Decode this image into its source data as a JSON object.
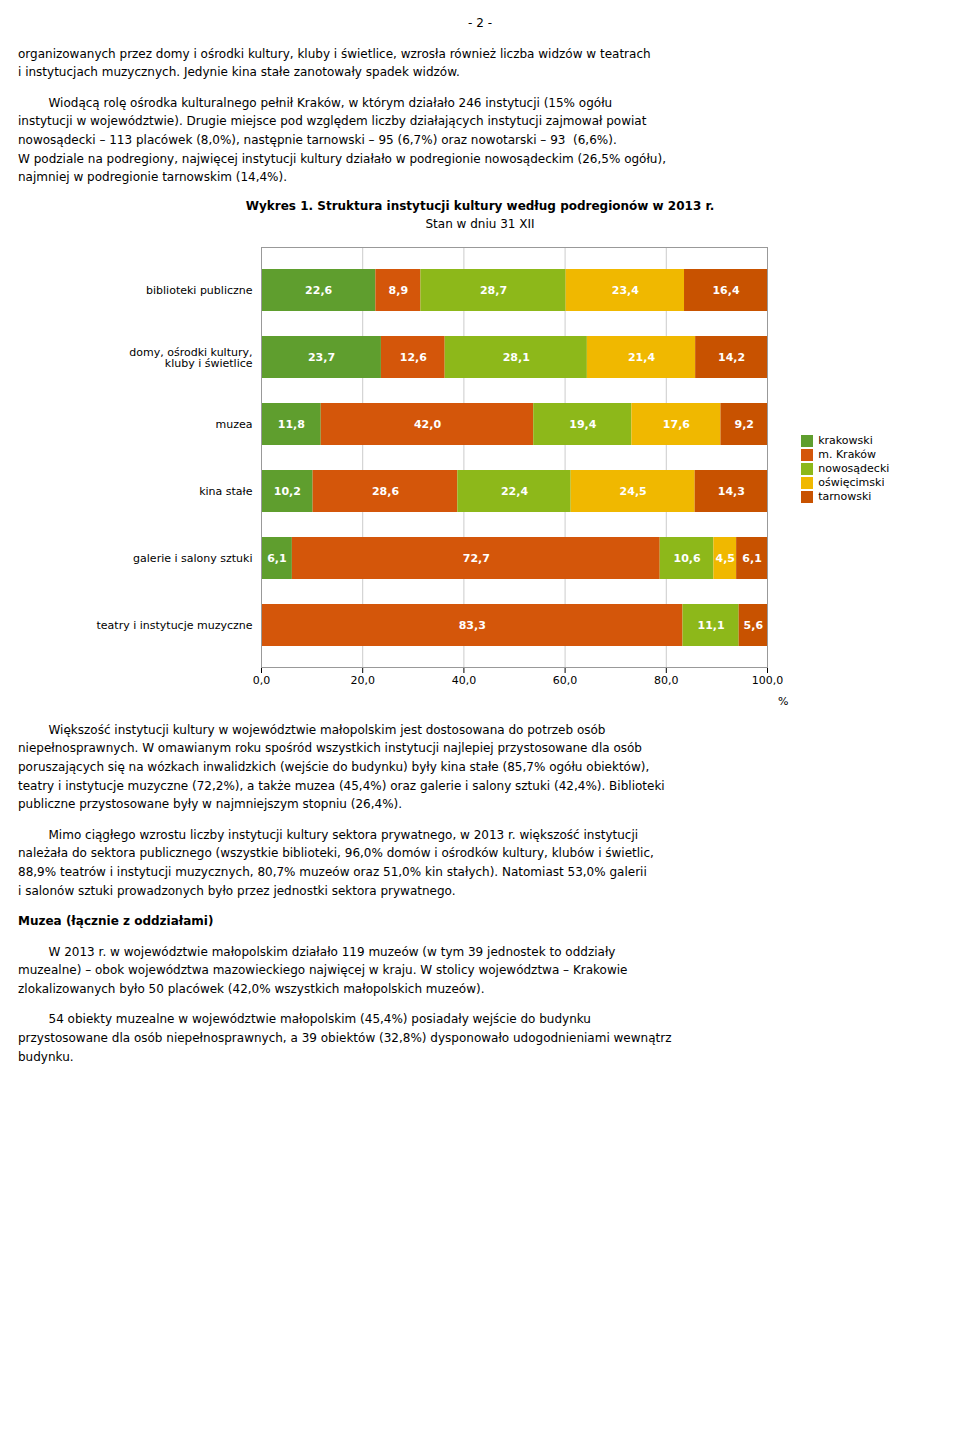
{
  "chart_data": {
    "type": "bar",
    "orientation": "horizontal",
    "stacked": true,
    "title": "Wykres 1. Struktura instytucji kultury według podregionów w 2013 r.",
    "subtitle": "Stan w dniu 31 XII",
    "xlabel": "%",
    "categories": [
      "biblioteki publiczne",
      "domy, ośrodki kultury,\nkluby i świetlice",
      "muzea",
      "kina stałe",
      "galerie i salony sztuki",
      "teatry i instytucje muzyczne"
    ],
    "series": [
      {
        "name": "krakowski",
        "color": "#5f9e2e",
        "values": [
          22.6,
          23.7,
          11.8,
          10.2,
          6.1,
          0.0
        ],
        "value_labels": [
          "22,6",
          "23,7",
          "11,8",
          "10,2",
          "6,1",
          null
        ]
      },
      {
        "name": "m. Kraków",
        "color": "#d4560a",
        "values": [
          8.9,
          12.6,
          42.0,
          28.6,
          72.7,
          83.3
        ],
        "value_labels": [
          "8,9",
          "12,6",
          "42,0",
          "28,6",
          "72,7",
          "83,3"
        ]
      },
      {
        "name": "nowosądecki",
        "color": "#8db81a",
        "values": [
          28.7,
          28.1,
          19.4,
          22.4,
          10.6,
          11.1
        ],
        "value_labels": [
          "28,7",
          "28,1",
          "19,4",
          "22,4",
          "10,6",
          "11,1"
        ]
      },
      {
        "name": "oświęcimski",
        "color": "#f0b800",
        "values": [
          23.4,
          21.4,
          17.6,
          24.5,
          4.5,
          0.0
        ],
        "value_labels": [
          "23,4",
          "21,4",
          "17,6",
          "24,5",
          "4,5",
          null
        ]
      },
      {
        "name": "tarnowski",
        "color": "#c85200",
        "values": [
          16.4,
          14.2,
          9.2,
          14.3,
          6.1,
          5.6
        ],
        "value_labels": [
          "16,4",
          "14,2",
          "9,2",
          "14,3",
          "6,1",
          "5,6"
        ]
      }
    ],
    "xlim": [
      0,
      100
    ],
    "xticks": [
      {
        "value": 0,
        "label": "0,0"
      },
      {
        "value": 20,
        "label": "20,0"
      },
      {
        "value": 40,
        "label": "40,0"
      },
      {
        "value": 60,
        "label": "60,0"
      },
      {
        "value": 80,
        "label": "80,0"
      },
      {
        "value": 100,
        "label": "100,0"
      }
    ],
    "grid": true,
    "legend": "right",
    "data_labels": true,
    "annotations": [
      "- 2 -",
      "organizowanych przez domy i ośrodki kultury, kluby i świetlice, wzrosła również liczba widzów w teatrach\ni instytucjach muzycznych. Jedynie kina stałe zanotowały spadek widzów.",
      "        Wiodącą rolę ośrodka kulturalnego pełnił Kraków, w którym działało 246 instytucji (15% ogółu\ninstytucji w województwie). Drugie miejsce pod względem liczby działających instytucji zajmował powiat\nnowosądecki – 113 placówek (8,0%), następnie tarnowski – 95 (6,7%) oraz nowotarski – 93  (6,6%).\nW podziale na podregiony, najwięcej instytucji kultury działało w podregionie nowosądeckim (26,5% ogółu),\nnajmniej w podregionie tarnowskim (14,4%).",
      "        Większość instytucji kultury w województwie małopolskim jest dostosowana do potrzeb osób\nniepełnosprawnych. W omawianym roku spośród wszystkich instytucji najlepiej przystosowane dla osób\nporuszających się na wózkach inwalidzkich (wejście do budynku) były kina stałe (85,7% ogółu obiektów),\nteatry i instytucje muzyczne (72,2%), a także muzea (45,4%) oraz galerie i salony sztuki (42,4%). Biblioteki\npubliczne przystosowane były w najmniejszym stopniu (26,4%).",
      "        Mimo ciągłego wzrostu liczby instytucji kultury sektora prywatnego, w 2013 r. większość instytucji\nnależała do sektora publicznego (wszystkie biblioteki, 96,0% domów i ośrodków kultury, klubów i świetlic,\n88,9% teatrów i instytucji muzycznych, 80,7% muzeów oraz 51,0% kin stałych). Natomiast 53,0% galerii\ni salonów sztuki prowadzonych było przez jednostki sektora prywatnego.",
      "Muzea (łącznie z oddziałami)",
      "        W 2013 r. w województwie małopolskim działało 119 muzeów (w tym 39 jednostek to oddziały\nmuzealne) – obok województwa mazowieckiego najwięcej w kraju. W stolicy województwa – Krakowie\nzlokalizowanych było 50 placówek (42,0% wszystkich małopolskich muzeów).",
      "        54 obiekty muzealne w województwie małopolskim (45,4%) posiadały wejście do budynku\nprzystosowane dla osób niepełnosprawnych, a 39 obiektów (32,8%) dysponowało udogodnieniami wewnątrz\nbudynku."
    ]
  }
}
